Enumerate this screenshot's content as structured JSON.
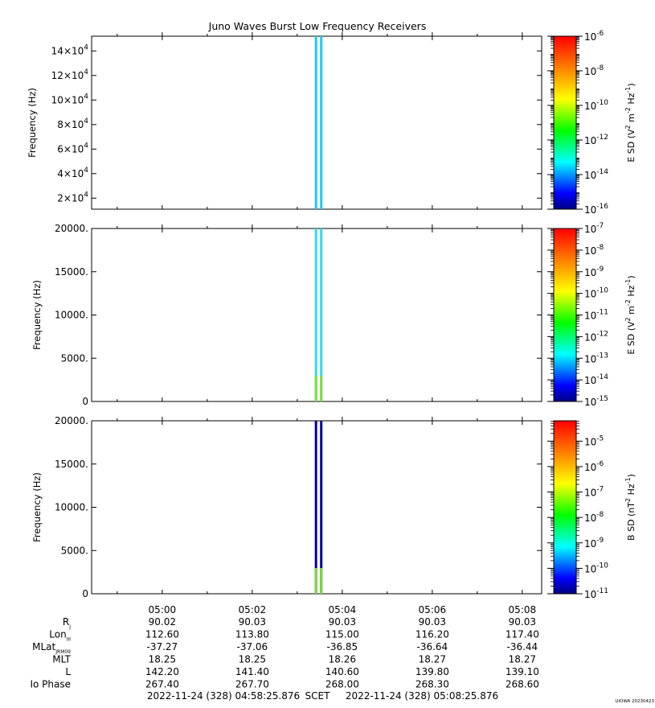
{
  "title": "Juno Waves Burst Low Frequency Receivers",
  "colors": {
    "colorbar": [
      "#00007f",
      "#0000ff",
      "#007fff",
      "#00ffff",
      "#00ff7f",
      "#00ff00",
      "#7fff00",
      "#ffff00",
      "#ffbf00",
      "#ff7f00",
      "#ff3f00",
      "#ff0000"
    ],
    "trace_panel1": "#1ec8f0",
    "trace_panel2": "#33d6ee",
    "trace_panel3": "#000096",
    "trace_low_band": "#7fdc3c"
  },
  "chart_data": [
    {
      "type": "heatmap",
      "ylabel": "Frequency (Hz)",
      "ylim": [
        11000,
        152000
      ],
      "yticks": [
        {
          "value": 20000,
          "base": "2×10",
          "exp": "4"
        },
        {
          "value": 40000,
          "base": "4×10",
          "exp": "4"
        },
        {
          "value": 60000,
          "base": "6×10",
          "exp": "4"
        },
        {
          "value": 80000,
          "base": "8×10",
          "exp": "4"
        },
        {
          "value": 100000,
          "base": "10×10",
          "exp": "4"
        },
        {
          "value": 120000,
          "base": "12×10",
          "exp": "4"
        },
        {
          "value": 140000,
          "base": "14×10",
          "exp": "4"
        }
      ],
      "xlim": [
        "04:58:25.876",
        "05:08:25.876"
      ],
      "bursts": [
        "05:03:25",
        "05:03:32"
      ],
      "colorbar": {
        "label_base": "E SD (V",
        "label_mid": " m",
        "label_mid2": " Hz",
        "label_end": ")",
        "label_exp1": "2",
        "label_exp2": "-2",
        "label_exp3": "-1",
        "log_range": [
          -16,
          -6
        ],
        "ticks": [
          {
            "value": -6,
            "base": "10",
            "exp": "-6"
          },
          {
            "value": -8,
            "base": "10",
            "exp": "-8"
          },
          {
            "value": -10,
            "base": "10",
            "exp": "-10"
          },
          {
            "value": -12,
            "base": "10",
            "exp": "-12"
          },
          {
            "value": -14,
            "base": "10",
            "exp": "-14"
          },
          {
            "value": -16,
            "base": "10",
            "exp": "-16"
          }
        ]
      }
    },
    {
      "type": "heatmap",
      "ylabel": "Frequency (Hz)",
      "ylim": [
        0,
        20000
      ],
      "yticks": [
        {
          "value": 0,
          "label": "0"
        },
        {
          "value": 5000,
          "label": "5000."
        },
        {
          "value": 10000,
          "label": "10000."
        },
        {
          "value": 15000,
          "label": "15000."
        },
        {
          "value": 20000,
          "label": "20000."
        }
      ],
      "xlim": [
        "04:58:25.876",
        "05:08:25.876"
      ],
      "bursts": [
        "05:03:25",
        "05:03:32"
      ],
      "colorbar": {
        "label_base": "E SD (V",
        "label_mid": " m",
        "label_mid2": " Hz",
        "label_end": ")",
        "label_exp1": "2",
        "label_exp2": "-2",
        "label_exp3": "-1",
        "log_range": [
          -15,
          -7
        ],
        "ticks": [
          {
            "value": -7,
            "base": "10",
            "exp": "-7"
          },
          {
            "value": -8,
            "base": "10",
            "exp": "-8"
          },
          {
            "value": -9,
            "base": "10",
            "exp": "-9"
          },
          {
            "value": -10,
            "base": "10",
            "exp": "-10"
          },
          {
            "value": -11,
            "base": "10",
            "exp": "-11"
          },
          {
            "value": -12,
            "base": "10",
            "exp": "-12"
          },
          {
            "value": -13,
            "base": "10",
            "exp": "-13"
          },
          {
            "value": -14,
            "base": "10",
            "exp": "-14"
          },
          {
            "value": -15,
            "base": "10",
            "exp": "-15"
          }
        ]
      }
    },
    {
      "type": "heatmap",
      "ylabel": "Frequency (Hz)",
      "ylim": [
        0,
        20000
      ],
      "yticks": [
        {
          "value": 0,
          "label": "0"
        },
        {
          "value": 5000,
          "label": "5000."
        },
        {
          "value": 10000,
          "label": "10000."
        },
        {
          "value": 15000,
          "label": "15000."
        },
        {
          "value": 20000,
          "label": "20000."
        }
      ],
      "xlim": [
        "04:58:25.876",
        "05:08:25.876"
      ],
      "bursts": [
        "05:03:25",
        "05:03:32"
      ],
      "colorbar": {
        "label_base": "B SD (nT",
        "label_mid": " Hz",
        "label_mid2": "",
        "label_end": ")",
        "label_exp1": "2",
        "label_exp2": "-1",
        "label_exp3": "",
        "log_range": [
          -11,
          -4.2
        ],
        "ticks": [
          {
            "value": -5,
            "base": "10",
            "exp": "-5"
          },
          {
            "value": -6,
            "base": "10",
            "exp": "-6"
          },
          {
            "value": -7,
            "base": "10",
            "exp": "-7"
          },
          {
            "value": -8,
            "base": "10",
            "exp": "-8"
          },
          {
            "value": -9,
            "base": "10",
            "exp": "-9"
          },
          {
            "value": -10,
            "base": "10",
            "exp": "-10"
          },
          {
            "value": -11,
            "base": "10",
            "exp": "-11"
          }
        ]
      }
    }
  ],
  "xaxis": {
    "start": "04:58:25.876",
    "end": "05:08:25.876",
    "tick_labels": [
      "05:00",
      "05:02",
      "05:04",
      "05:06",
      "05:08"
    ],
    "tick_times": [
      "05:00:00",
      "05:02:00",
      "05:04:00",
      "05:06:00",
      "05:08:00"
    ],
    "minor_times": [
      "04:59:00",
      "05:01:00",
      "05:03:00",
      "05:05:00",
      "05:07:00"
    ]
  },
  "ephemeris": [
    {
      "label": "R",
      "sub": "J",
      "values": [
        "90.02",
        "90.03",
        "90.03",
        "90.03",
        "90.03"
      ]
    },
    {
      "label": "Lon",
      "sub": "III",
      "values": [
        "112.60",
        "113.80",
        "115.00",
        "116.20",
        "117.40"
      ]
    },
    {
      "label": "MLat",
      "sub": "JRM09",
      "values": [
        "-37.27",
        "-37.06",
        "-36.85",
        "-36.64",
        "-36.44"
      ]
    },
    {
      "label": "MLT",
      "sub": "",
      "values": [
        "18.25",
        "18.25",
        "18.26",
        "18.27",
        "18.27"
      ]
    },
    {
      "label": "L",
      "sub": "",
      "values": [
        "142.20",
        "141.40",
        "140.60",
        "139.80",
        "139.10"
      ]
    },
    {
      "label": "Io Phase",
      "sub": "",
      "values": [
        "267.40",
        "267.70",
        "268.00",
        "268.30",
        "268.60"
      ]
    }
  ],
  "footer": {
    "start": "2022-11-24 (328) 04:58:25.876",
    "frame": "SCET",
    "end": "2022-11-24 (328) 05:08:25.876"
  },
  "stamp": "UIOWA 20230423"
}
